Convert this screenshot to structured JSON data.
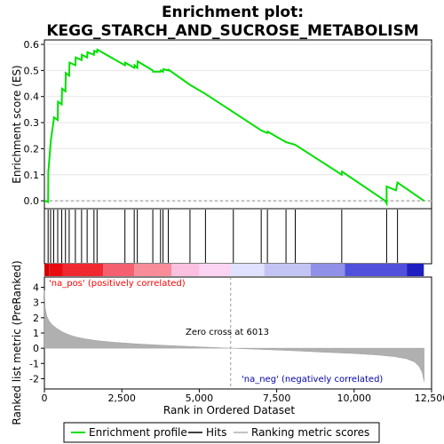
{
  "title": "Enrichment plot:",
  "subtitle": "KEGG_STARCH_AND_SUCROSE_METABOLISM",
  "colors": {
    "enrichment_line": "#00e000",
    "hit_line": "#000000",
    "metric_fill": "#b0b0b0",
    "pos_label": "#ff0000",
    "neg_label": "#0000aa"
  },
  "chart_data": [
    {
      "type": "line",
      "name": "enrichment-plot",
      "ylabel": "Enrichment score (ES)",
      "xlim": [
        0,
        12500
      ],
      "ylim": [
        -0.02,
        0.6
      ],
      "yticks": [
        0.0,
        0.1,
        0.2,
        0.3,
        0.4,
        0.5,
        0.6
      ],
      "ytick_labels": [
        "0.0",
        "0.1",
        "0.2",
        "0.3",
        "0.4",
        "0.5",
        "0.6"
      ],
      "series": [
        {
          "name": "Enrichment profile",
          "x": [
            0,
            120,
            125,
            200,
            205,
            300,
            310,
            430,
            440,
            560,
            570,
            680,
            690,
            800,
            810,
            1000,
            1010,
            1200,
            1210,
            1380,
            1390,
            1600,
            1610,
            1700,
            1710,
            2600,
            2610,
            2900,
            2910,
            3000,
            3010,
            3500,
            3510,
            3750,
            3760,
            3830,
            3840,
            4000,
            4010,
            4700,
            5200,
            6100,
            7000,
            7200,
            7210,
            7800,
            8100,
            9600,
            9610,
            11000,
            11050,
            11050,
            11350,
            11400,
            12250
          ],
          "y": [
            0.0,
            -0.005,
            0.11,
            0.22,
            0.23,
            0.31,
            0.32,
            0.31,
            0.38,
            0.37,
            0.43,
            0.42,
            0.49,
            0.48,
            0.53,
            0.52,
            0.55,
            0.54,
            0.56,
            0.55,
            0.57,
            0.56,
            0.575,
            0.57,
            0.58,
            0.52,
            0.53,
            0.51,
            0.52,
            0.51,
            0.535,
            0.5,
            0.495,
            0.495,
            0.5,
            0.495,
            0.505,
            0.5,
            0.503,
            0.445,
            0.41,
            0.34,
            0.27,
            0.26,
            0.265,
            0.225,
            0.215,
            0.1,
            0.112,
            0.0,
            -0.01,
            0.055,
            0.04,
            0.07,
            0.0
          ]
        }
      ]
    },
    {
      "type": "scatter",
      "name": "hits",
      "series": [
        {
          "name": "Hits",
          "x": [
            120,
            200,
            300,
            430,
            560,
            680,
            800,
            1000,
            1200,
            1380,
            1600,
            1700,
            2600,
            2900,
            3000,
            3500,
            3750,
            3830,
            4000,
            4700,
            5200,
            6100,
            7000,
            7200,
            7800,
            8100,
            9600,
            11050,
            11400
          ]
        }
      ]
    },
    {
      "type": "area",
      "name": "ranked-list-metric",
      "xlabel": "Rank in Ordered Dataset",
      "ylabel": "Ranked list metric (PreRanked)",
      "xlim": [
        0,
        12500
      ],
      "ylim": [
        -2.5,
        4.5
      ],
      "xticks": [
        0,
        2500,
        5000,
        7500,
        10000,
        12500
      ],
      "xtick_labels": [
        "0",
        "2,500",
        "5,000",
        "7,500",
        "10,000",
        "12,500"
      ],
      "yticks": [
        -2,
        -1,
        0,
        1,
        2,
        3,
        4
      ],
      "ytick_labels": [
        "-2",
        "-1",
        "0",
        "1",
        "2",
        "3",
        "4"
      ],
      "zero_cross": 6013,
      "series": [
        {
          "name": "Ranking metric scores",
          "x": [
            0,
            30,
            80,
            150,
            250,
            400,
            600,
            800,
            1000,
            1300,
            1700,
            2200,
            3000,
            4000,
            5000,
            6013,
            7000,
            8000,
            9000,
            10000,
            10800,
            11300,
            11700,
            11950,
            12100,
            12200,
            12260
          ],
          "y": [
            3.8,
            2.6,
            2.1,
            1.8,
            1.55,
            1.3,
            1.05,
            0.88,
            0.75,
            0.62,
            0.5,
            0.4,
            0.28,
            0.18,
            0.09,
            0.0,
            -0.08,
            -0.16,
            -0.26,
            -0.35,
            -0.45,
            -0.55,
            -0.7,
            -0.9,
            -1.2,
            -1.6,
            -2.2
          ]
        }
      ]
    }
  ],
  "annotations": {
    "pos_label": "'na_pos' (positively correlated)",
    "neg_label": "'na_neg' (negatively correlated)",
    "zero_cross_label": "Zero cross at 6013"
  },
  "legend": {
    "items": [
      {
        "label": "Enrichment profile"
      },
      {
        "label": "Hits"
      },
      {
        "label": "Ranking metric scores"
      }
    ]
  }
}
